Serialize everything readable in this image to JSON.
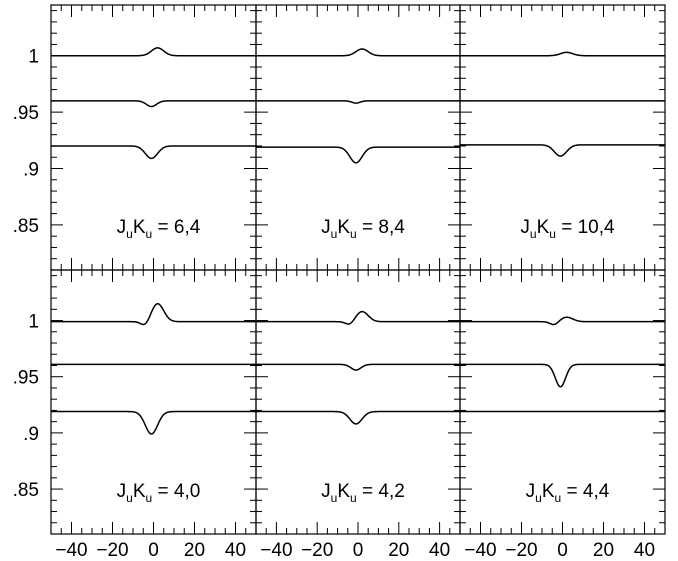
{
  "chart_data": {
    "type": "line",
    "x_ticks": [
      -40,
      -20,
      0,
      20,
      40
    ],
    "x_tick_labels": [
      "−40",
      "−20",
      "0",
      "20",
      "40"
    ],
    "xlim": [
      -50,
      50
    ],
    "y_ticks": [
      1,
      0.95,
      0.9,
      0.85
    ],
    "y_tick_labels": [
      "1",
      ".95",
      ".9",
      ".85"
    ],
    "ylim": [
      0.81,
      1.045
    ],
    "grid": false,
    "panels": [
      {
        "row": 0,
        "col": 0,
        "label": {
          "prefix": "J",
          "sub1": "u",
          "mid": "K",
          "sub2": "u",
          "value": " = 6,4"
        },
        "series": [
          {
            "baseline": 1.0,
            "features": [
              {
                "center": 2,
                "amp": 0.007,
                "width": 3
              }
            ]
          },
          {
            "baseline": 0.96,
            "features": [
              {
                "center": -1,
                "amp": -0.005,
                "width": 2.5
              }
            ]
          },
          {
            "baseline": 0.92,
            "features": [
              {
                "center": -1,
                "amp": -0.011,
                "width": 3
              }
            ]
          }
        ]
      },
      {
        "row": 0,
        "col": 1,
        "label": {
          "prefix": "J",
          "sub1": "u",
          "mid": "K",
          "sub2": "u",
          "value": " = 8,4"
        },
        "series": [
          {
            "baseline": 1.0,
            "features": [
              {
                "center": 2,
                "amp": 0.006,
                "width": 3
              }
            ]
          },
          {
            "baseline": 0.96,
            "features": [
              {
                "center": -1,
                "amp": -0.002,
                "width": 2
              }
            ]
          },
          {
            "baseline": 0.919,
            "features": [
              {
                "center": -1,
                "amp": -0.014,
                "width": 3
              }
            ]
          }
        ]
      },
      {
        "row": 0,
        "col": 2,
        "label": {
          "prefix": "J",
          "sub1": "u",
          "mid": "K",
          "sub2": "u",
          "value": " = 10,4"
        },
        "series": [
          {
            "baseline": 1.0,
            "features": [
              {
                "center": 2,
                "amp": 0.003,
                "width": 3
              }
            ]
          },
          {
            "baseline": 0.96,
            "features": []
          },
          {
            "baseline": 0.921,
            "features": [
              {
                "center": -1,
                "amp": -0.01,
                "width": 3
              }
            ]
          }
        ]
      },
      {
        "row": 1,
        "col": 0,
        "label": {
          "prefix": "J",
          "sub1": "u",
          "mid": "K",
          "sub2": "u",
          "value": " = 4,0"
        },
        "series": [
          {
            "baseline": 0.999,
            "features": [
              {
                "center": 2,
                "amp": 0.016,
                "width": 3
              },
              {
                "center": -4,
                "amp": -0.004,
                "width": 2
              }
            ]
          },
          {
            "baseline": 0.961,
            "features": []
          },
          {
            "baseline": 0.919,
            "features": [
              {
                "center": -1,
                "amp": -0.02,
                "width": 3
              }
            ]
          }
        ]
      },
      {
        "row": 1,
        "col": 1,
        "label": {
          "prefix": "J",
          "sub1": "u",
          "mid": "K",
          "sub2": "u",
          "value": " = 4,2"
        },
        "series": [
          {
            "baseline": 0.999,
            "features": [
              {
                "center": 2,
                "amp": 0.009,
                "width": 3
              },
              {
                "center": -4,
                "amp": -0.003,
                "width": 2
              }
            ]
          },
          {
            "baseline": 0.961,
            "features": [
              {
                "center": -1,
                "amp": -0.005,
                "width": 2.5
              }
            ]
          },
          {
            "baseline": 0.919,
            "features": [
              {
                "center": -1,
                "amp": -0.011,
                "width": 3
              }
            ]
          }
        ]
      },
      {
        "row": 1,
        "col": 2,
        "label": {
          "prefix": "J",
          "sub1": "u",
          "mid": "K",
          "sub2": "u",
          "value": " = 4,4"
        },
        "series": [
          {
            "baseline": 0.999,
            "features": [
              {
                "center": 2,
                "amp": 0.004,
                "width": 3
              },
              {
                "center": -4,
                "amp": -0.003,
                "width": 2
              }
            ]
          },
          {
            "baseline": 0.961,
            "features": [
              {
                "center": -1,
                "amp": -0.02,
                "width": 2.5
              }
            ]
          },
          {
            "baseline": 0.919,
            "features": []
          }
        ]
      }
    ]
  }
}
